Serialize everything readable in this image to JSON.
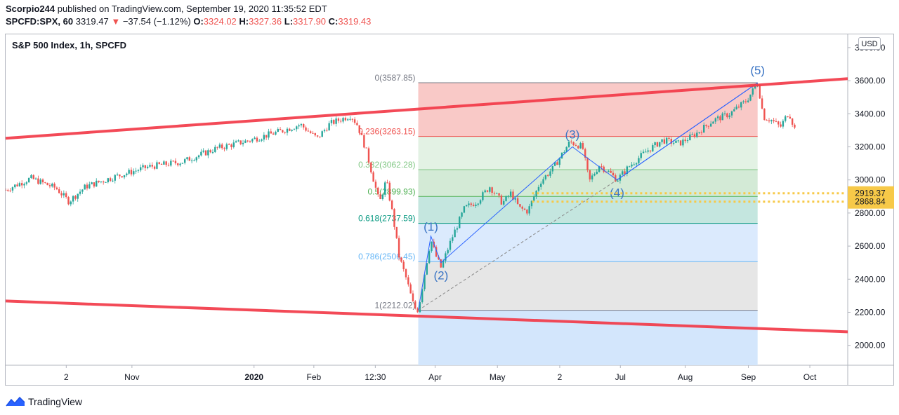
{
  "header": {
    "author": "Scorpio244",
    "published_text": "published on TradingView.com, September 19, 2020 11:35:52 EDT",
    "symbol": "SPCFD:SPX, 60",
    "last": "3319.47",
    "change": "−37.54 (−1.12%)",
    "o_label": "O:",
    "o_value": "3324.02",
    "h_label": "H:",
    "h_value": "3327.36",
    "l_label": "L:",
    "l_value": "3317.90",
    "c_label": "C:",
    "c_value": "3319.43"
  },
  "series_title": "S&P 500 Index, 1h, SPCFD",
  "currency": "USD",
  "footer": {
    "brand": "TradingView"
  },
  "colors": {
    "up": "#26a69a",
    "down": "#ef5350",
    "channel": "#f23645",
    "wave": "#2962ff",
    "highlight": "#f7c948"
  },
  "chart_data": {
    "type": "candlestick",
    "ylim": [
      1880,
      3880
    ],
    "y_ticks": [
      2000,
      2200,
      2400,
      2600,
      2800,
      3000,
      3200,
      3400,
      3600,
      3800
    ],
    "y_tick_labels": [
      "2000.00",
      "2200.00",
      "2400.00",
      "2600.00",
      "2800.00",
      "3000.00",
      "3200.00",
      "3400.00",
      "3600.00",
      "3800.00"
    ],
    "x_ticks": [
      {
        "label": "2",
        "t": 0.072
      },
      {
        "label": "Nov",
        "t": 0.15
      },
      {
        "label": "2020",
        "t": 0.295,
        "bold": true
      },
      {
        "label": "Feb",
        "t": 0.366
      },
      {
        "label": "12:30",
        "t": 0.439
      },
      {
        "label": "Apr",
        "t": 0.51
      },
      {
        "label": "May",
        "t": 0.584
      },
      {
        "label": "2",
        "t": 0.658
      },
      {
        "label": "Jul",
        "t": 0.73
      },
      {
        "label": "Aug",
        "t": 0.807
      },
      {
        "label": "Sep",
        "t": 0.882
      },
      {
        "label": "Oct",
        "t": 0.955
      }
    ],
    "price_path": [
      [
        0.0,
        2940
      ],
      [
        0.03,
        3010
      ],
      [
        0.06,
        2950
      ],
      [
        0.075,
        2870
      ],
      [
        0.095,
        2960
      ],
      [
        0.13,
        3020
      ],
      [
        0.17,
        3080
      ],
      [
        0.21,
        3110
      ],
      [
        0.25,
        3190
      ],
      [
        0.29,
        3240
      ],
      [
        0.33,
        3300
      ],
      [
        0.35,
        3335
      ],
      [
        0.37,
        3250
      ],
      [
        0.385,
        3340
      ],
      [
        0.4,
        3370
      ],
      [
        0.41,
        3390
      ],
      [
        0.418,
        3330
      ],
      [
        0.428,
        3180
      ],
      [
        0.436,
        3020
      ],
      [
        0.444,
        2860
      ],
      [
        0.452,
        3000
      ],
      [
        0.46,
        2780
      ],
      [
        0.467,
        2540
      ],
      [
        0.476,
        2400
      ],
      [
        0.485,
        2230
      ],
      [
        0.49,
        2212
      ],
      [
        0.497,
        2420
      ],
      [
        0.505,
        2640
      ],
      [
        0.511,
        2540
      ],
      [
        0.517,
        2470
      ],
      [
        0.53,
        2650
      ],
      [
        0.545,
        2830
      ],
      [
        0.56,
        2870
      ],
      [
        0.575,
        2960
      ],
      [
        0.59,
        2860
      ],
      [
        0.6,
        2920
      ],
      [
        0.61,
        2830
      ],
      [
        0.62,
        2810
      ],
      [
        0.635,
        2990
      ],
      [
        0.65,
        3070
      ],
      [
        0.67,
        3230
      ],
      [
        0.685,
        3200
      ],
      [
        0.693,
        2990
      ],
      [
        0.705,
        3090
      ],
      [
        0.718,
        3040
      ],
      [
        0.726,
        3000
      ],
      [
        0.74,
        3080
      ],
      [
        0.76,
        3170
      ],
      [
        0.78,
        3240
      ],
      [
        0.8,
        3220
      ],
      [
        0.82,
        3280
      ],
      [
        0.84,
        3360
      ],
      [
        0.86,
        3400
      ],
      [
        0.88,
        3480
      ],
      [
        0.893,
        3587
      ],
      [
        0.9,
        3380
      ],
      [
        0.91,
        3360
      ],
      [
        0.92,
        3320
      ],
      [
        0.93,
        3410
      ],
      [
        0.937,
        3310
      ]
    ],
    "fibonacci": [
      {
        "level": "0",
        "price": 3587.85,
        "label": "0(3587.85)",
        "fill": "#f9c9c7"
      },
      {
        "level": "0.236",
        "price": 3263.15,
        "label": "0.236(3263.15)",
        "fill": "#e3f2e4"
      },
      {
        "level": "0.382",
        "price": 3062.28,
        "label": "0.382(3062.28)",
        "fill": "#d3ead6"
      },
      {
        "level": "0.5",
        "price": 2899.93,
        "label": "0.5(2899.93)",
        "fill": "#c4e6df"
      },
      {
        "level": "0.618",
        "price": 2737.59,
        "label": "0.618(2737.59)",
        "fill": "#dbeafd"
      },
      {
        "level": "0.786",
        "price": 2506.45,
        "label": "0.786(2506.45)",
        "fill": "#e6e6e6"
      },
      {
        "level": "1",
        "price": 2212.02,
        "label": "1(2212.02)",
        "fill": "#d3e6fc"
      }
    ],
    "fib_level_colors": [
      "#787b86",
      "#ef5350",
      "#81c784",
      "#4caf50",
      "#089981",
      "#64b5f6",
      "#787b86"
    ],
    "fib_range": {
      "t_start": 0.49,
      "t_end": 0.893
    },
    "waves": [
      {
        "label": "(1)",
        "t": 0.505,
        "price": 2660
      },
      {
        "label": "(2)",
        "t": 0.517,
        "price": 2500
      },
      {
        "label": "(3)",
        "t": 0.673,
        "price": 3200
      },
      {
        "label": "(4)",
        "t": 0.726,
        "price": 3000
      },
      {
        "label": "(5)",
        "t": 0.893,
        "price": 3587
      }
    ],
    "wave_start": {
      "t": 0.49,
      "price": 2212
    },
    "channel_upper": [
      [
        0.0,
        3252
      ],
      [
        1.0,
        3612
      ]
    ],
    "channel_lower": [
      [
        0.0,
        2268
      ],
      [
        1.0,
        2082
      ]
    ],
    "price_levels": [
      {
        "price": 2919.37,
        "label": "2919.37"
      },
      {
        "price": 2868.84,
        "label": "2868.84"
      }
    ],
    "price_levels_t_start": 0.625
  }
}
